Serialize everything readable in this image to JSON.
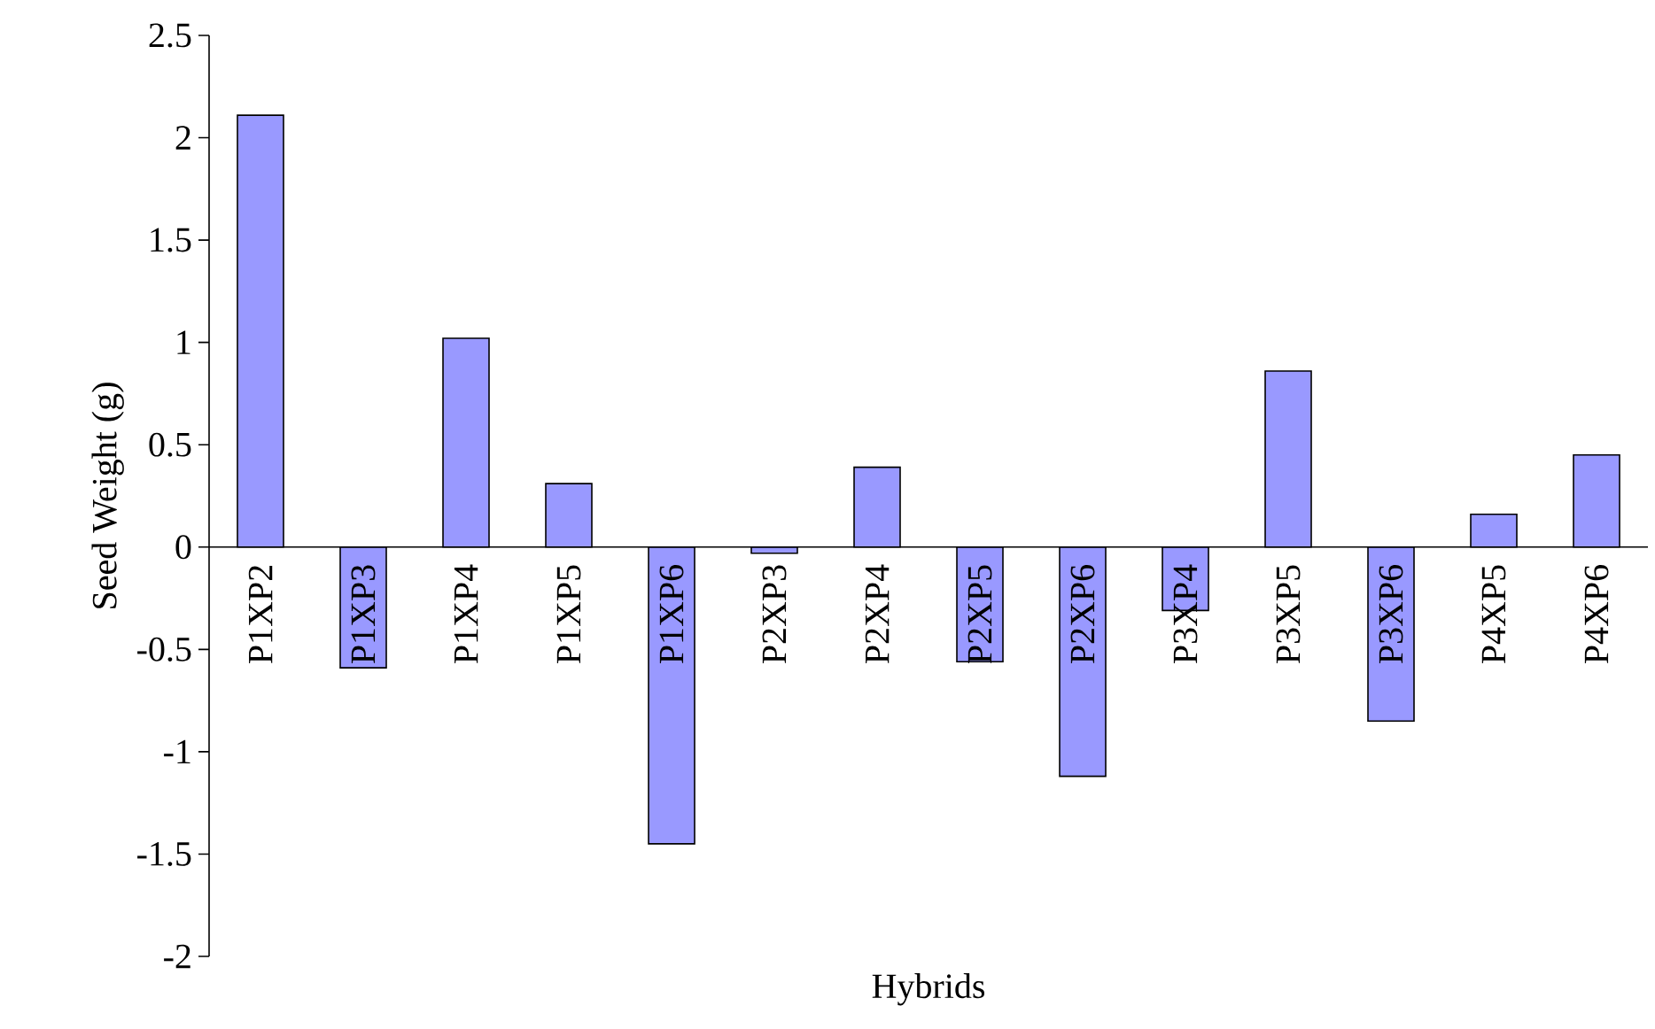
{
  "chart_data": {
    "type": "bar",
    "xlabel": "Hybrids",
    "ylabel": "Seed Weight (g)",
    "categories": [
      "P1XP2",
      "P1XP3",
      "P1XP4",
      "P1XP5",
      "P1XP6",
      "P2XP3",
      "P2XP4",
      "P2XP5",
      "P2XP6",
      "P3XP4",
      "P3XP5",
      "P3XP6",
      "P4XP5",
      "P4XP6"
    ],
    "values": [
      2.11,
      -0.59,
      1.02,
      0.31,
      -1.45,
      -0.03,
      0.39,
      -0.56,
      -1.12,
      -0.31,
      0.86,
      -0.85,
      0.16,
      0.45
    ],
    "color": "#9999ff",
    "ylim": [
      -2,
      2.5
    ],
    "yticks": [
      -2,
      -1.5,
      -1,
      -0.5,
      0,
      0.5,
      1,
      1.5,
      2,
      2.5
    ],
    "grid": false
  }
}
